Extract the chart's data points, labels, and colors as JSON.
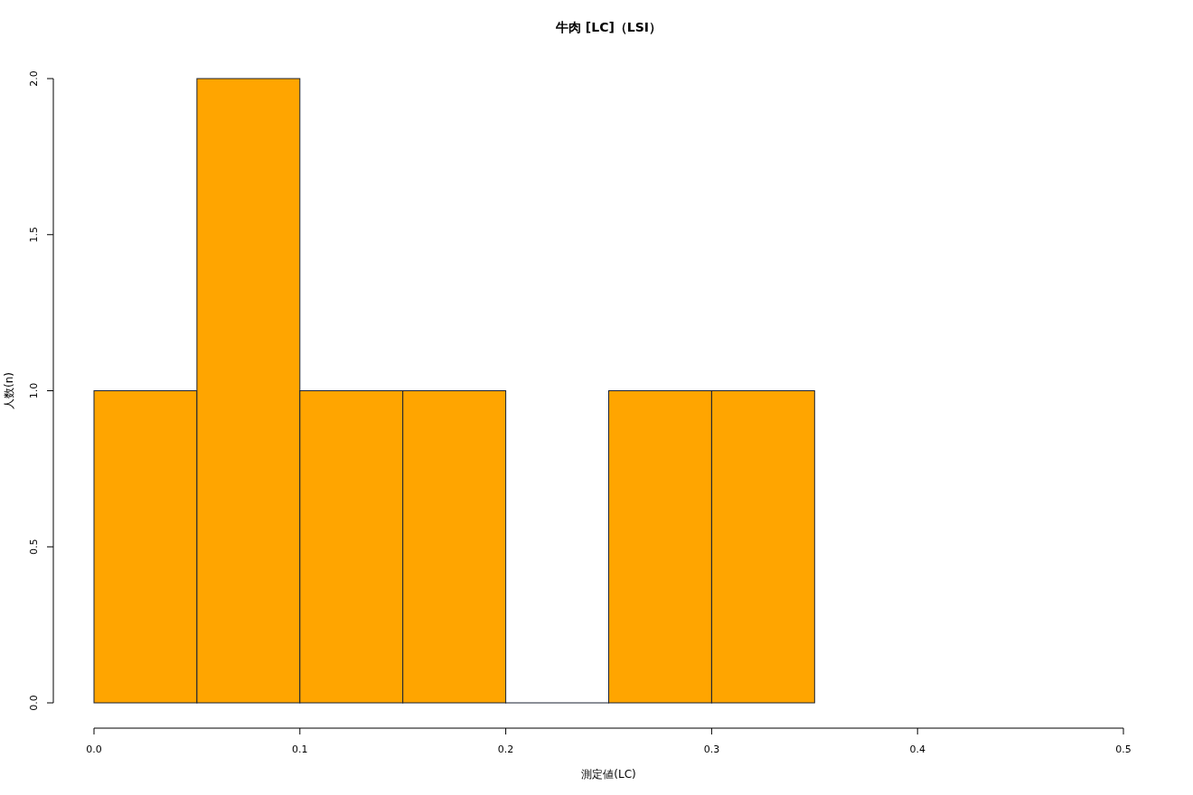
{
  "chart_data": {
    "type": "histogram",
    "title": "牛肉 [LC]（LSI）",
    "xlabel": "測定値(LC)",
    "ylabel": "人数(n)",
    "bins": [
      0,
      0.05,
      0.1,
      0.15,
      0.2,
      0.25,
      0.3,
      0.35
    ],
    "values": [
      1,
      2,
      1,
      1,
      0,
      1,
      1
    ],
    "color": "#ffa500",
    "xlim": [
      0,
      0.5
    ],
    "xticks": [
      {
        "value": 0,
        "label": "0.0"
      },
      {
        "value": 0.1,
        "label": "0.1"
      },
      {
        "value": 0.2,
        "label": "0.2"
      },
      {
        "value": 0.3,
        "label": "0.3"
      },
      {
        "value": 0.4,
        "label": "0.4"
      },
      {
        "value": 0.5,
        "label": "0.5"
      }
    ],
    "ylim": [
      0,
      2
    ],
    "yticks": [
      {
        "value": 0,
        "label": "0.0"
      },
      {
        "value": 0.5,
        "label": "0.5"
      },
      {
        "value": 1,
        "label": "1.0"
      },
      {
        "value": 1.5,
        "label": "1.5"
      },
      {
        "value": 2,
        "label": "2.0"
      }
    ],
    "grid": false
  }
}
